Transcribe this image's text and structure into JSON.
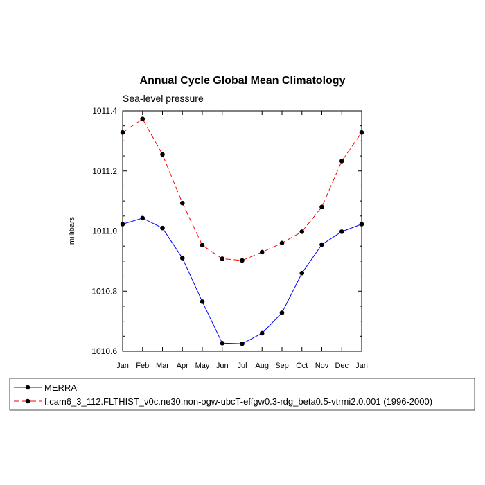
{
  "chart_data": {
    "type": "line",
    "title": "Annual Cycle Global Mean Climatology",
    "subtitle": "Sea-level pressure",
    "xlabel": "",
    "ylabel": "millibars",
    "categories": [
      "Jan",
      "Feb",
      "Mar",
      "Apr",
      "May",
      "Jun",
      "Jul",
      "Aug",
      "Sep",
      "Oct",
      "Nov",
      "Dec",
      "Jan"
    ],
    "ylim": [
      1010.6,
      1011.4
    ],
    "yticks": [
      1010.6,
      1010.8,
      1011.0,
      1011.2,
      1011.4
    ],
    "ytick_labels": [
      "1010.6",
      "1010.8",
      "1011.0",
      "1011.2",
      "1011.4"
    ],
    "series": [
      {
        "name": "MERRA",
        "color": "#0000ff",
        "dash": "solid",
        "values": [
          1011.023,
          1011.043,
          1011.01,
          1010.91,
          1010.765,
          1010.627,
          1010.625,
          1010.66,
          1010.728,
          1010.86,
          1010.955,
          1010.998,
          1011.023
        ]
      },
      {
        "name": "f.cam6_3_112.FLTHIST_v0c.ne30.non-ogw-ubcT-effgw0.3-rdg_beta0.5-vtrmi2.0.001 (1996-2000)",
        "color": "#ff0000",
        "dash": "dashed",
        "values": [
          1011.328,
          1011.373,
          1011.255,
          1011.093,
          1010.953,
          1010.908,
          1010.902,
          1010.93,
          1010.96,
          1010.998,
          1011.08,
          1011.233,
          1011.328
        ]
      }
    ],
    "legend": [
      "MERRA",
      "f.cam6_3_112.FLTHIST_v0c.ne30.non-ogw-ubcT-effgw0.3-rdg_beta0.5-vtrmi2.0.001 (1996-2000)"
    ],
    "marker_color": "#000000"
  }
}
